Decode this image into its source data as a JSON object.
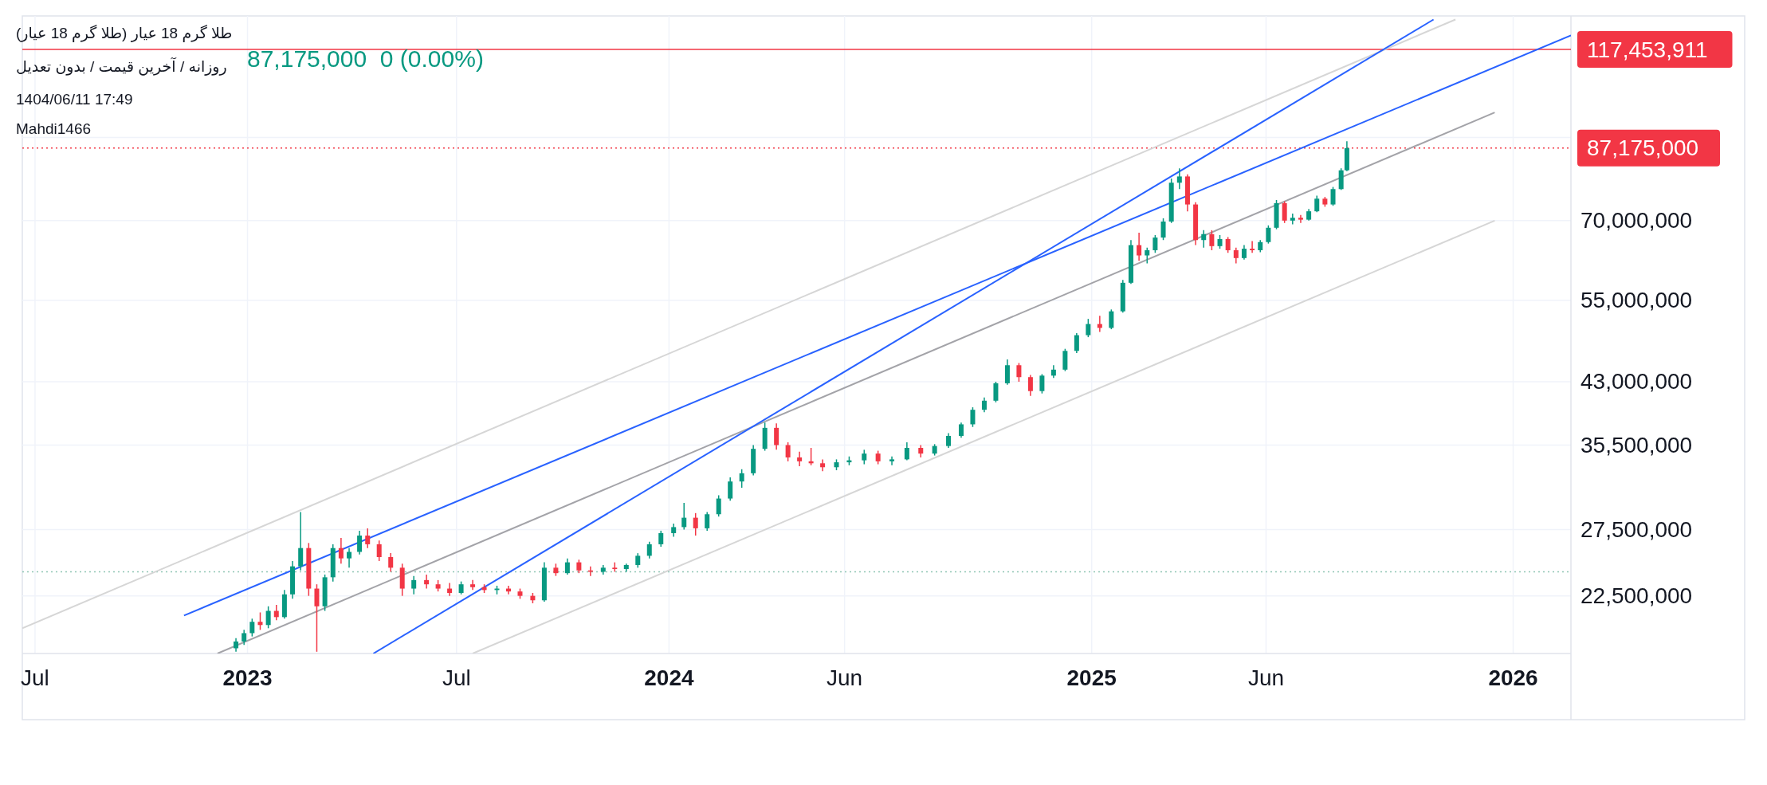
{
  "chart_data": {
    "type": "candlestick",
    "title": "طلا گرم 18 عیار (طلا گرم 18 عیار)",
    "subtitle": "روزانه / آخرین قیمت / بدون تعدیل",
    "annotations": [
      "1404/06/11 17:49",
      "Mahdi1466",
      "87,175,000  0 (0.00%)"
    ],
    "log": true,
    "grid": true,
    "xlim": [
      "2022-06-20",
      "2026-02-20"
    ],
    "xticks": [
      {
        "value": "2022-07-01",
        "label": "Jul"
      },
      {
        "value": "2023-01-01",
        "label": "2023"
      },
      {
        "value": "2023-07-01",
        "label": "Jul"
      },
      {
        "value": "2024-01-01",
        "label": "2024"
      },
      {
        "value": "2024-06-01",
        "label": "Jun"
      },
      {
        "value": "2025-01-01",
        "label": "2025"
      },
      {
        "value": "2025-06-01",
        "label": "Jun"
      },
      {
        "value": "2026-01-01",
        "label": "2026"
      }
    ],
    "ylim": [
      18900000,
      130000000
    ],
    "yticks": [
      {
        "value": 22500000,
        "label": "22,500,000"
      },
      {
        "value": 27500000,
        "label": "27,500,000"
      },
      {
        "value": 35500000,
        "label": "35,500,000"
      },
      {
        "value": 43000000,
        "label": "43,000,000"
      },
      {
        "value": 55000000,
        "label": "55,000,000"
      },
      {
        "value": 70000000,
        "label": "70,000,000"
      },
      {
        "value": 90000000,
        "label": null
      }
    ],
    "ref_lines": [
      {
        "axis": "y",
        "value": 117453911,
        "label": "117,453,911",
        "color": "#f23645",
        "line_style": "solid"
      },
      {
        "axis": "y",
        "value": 87175000,
        "label": "87,175,000",
        "color": "#f23645",
        "line_style": "dotted"
      },
      {
        "axis": "y",
        "value": 24200000,
        "color": "#8fc5b5",
        "line_style": "dotted"
      }
    ],
    "series": [
      {
        "type": "line",
        "x": [
          "2022-06-20",
          "2025-11-12"
        ],
        "values": [
          20400000,
          128600000
        ],
        "color": "#d6d6d6"
      },
      {
        "type": "line",
        "x": [
          "2023-07-15",
          "2025-12-16"
        ],
        "values": [
          18900000,
          70000000
        ],
        "color": "#d6d6d6"
      },
      {
        "type": "line",
        "x": [
          "2022-12-06",
          "2025-12-16"
        ],
        "values": [
          18900000,
          97100000
        ],
        "color": "#a3a3a8"
      },
      {
        "type": "line",
        "x": [
          "2022-11-07",
          "2026-02-20"
        ],
        "values": [
          21200000,
          122600000
        ],
        "color": "#2962ff"
      },
      {
        "type": "line",
        "x": [
          "2023-04-20",
          "2025-10-24"
        ],
        "values": [
          18900000,
          128600000
        ],
        "color": "#2962ff"
      }
    ],
    "x": [
      "2022-12-22",
      "2022-12-29",
      "2023-01-05",
      "2023-01-12",
      "2023-01-19",
      "2023-01-26",
      "2023-02-02",
      "2023-02-09",
      "2023-02-16",
      "2023-02-23",
      "2023-03-02",
      "2023-03-09",
      "2023-03-16",
      "2023-03-23",
      "2023-03-30",
      "2023-04-08",
      "2023-04-15",
      "2023-04-25",
      "2023-05-05",
      "2023-05-15",
      "2023-05-25",
      "2023-06-05",
      "2023-06-15",
      "2023-06-25",
      "2023-07-05",
      "2023-07-15",
      "2023-07-25",
      "2023-08-05",
      "2023-08-15",
      "2023-08-25",
      "2023-09-05",
      "2023-09-15",
      "2023-09-25",
      "2023-10-05",
      "2023-10-15",
      "2023-10-25",
      "2023-11-05",
      "2023-11-15",
      "2023-11-25",
      "2023-12-05",
      "2023-12-15",
      "2023-12-25",
      "2024-01-05",
      "2024-01-14",
      "2024-01-24",
      "2024-02-03",
      "2024-02-13",
      "2024-02-23",
      "2024-03-04",
      "2024-03-14",
      "2024-03-24",
      "2024-04-03",
      "2024-04-13",
      "2024-04-23",
      "2024-05-03",
      "2024-05-13",
      "2024-05-25",
      "2024-06-05",
      "2024-06-18",
      "2024-06-30",
      "2024-07-12",
      "2024-07-25",
      "2024-08-06",
      "2024-08-18",
      "2024-08-30",
      "2024-09-10",
      "2024-09-20",
      "2024-09-30",
      "2024-10-10",
      "2024-10-20",
      "2024-10-30",
      "2024-11-09",
      "2024-11-19",
      "2024-11-29",
      "2024-12-09",
      "2024-12-19",
      "2024-12-29",
      "2025-01-08",
      "2025-01-18",
      "2025-01-28",
      "2025-02-04",
      "2025-02-11",
      "2025-02-18",
      "2025-02-25",
      "2025-03-04",
      "2025-03-11",
      "2025-03-18",
      "2025-03-25",
      "2025-04-01",
      "2025-04-08",
      "2025-04-15",
      "2025-04-22",
      "2025-04-29",
      "2025-05-06",
      "2025-05-13",
      "2025-05-20",
      "2025-05-27",
      "2025-06-03",
      "2025-06-10",
      "2025-06-17",
      "2025-06-24",
      "2025-07-01",
      "2025-07-08",
      "2025-07-15",
      "2025-07-22",
      "2025-07-29",
      "2025-08-05",
      "2025-08-10"
    ],
    "ohlc": [
      [
        19200000,
        19800000,
        19000000,
        19600000
      ],
      [
        19600000,
        20300000,
        19400000,
        20100000
      ],
      [
        20100000,
        21000000,
        19900000,
        20800000
      ],
      [
        20800000,
        21400000,
        20300000,
        20600000
      ],
      [
        20600000,
        21800000,
        20400000,
        21500000
      ],
      [
        21500000,
        21900000,
        20900000,
        21100000
      ],
      [
        21100000,
        22900000,
        21000000,
        22600000
      ],
      [
        22600000,
        25000000,
        22300000,
        24600000
      ],
      [
        24600000,
        29000000,
        24300000,
        26000000
      ],
      [
        26000000,
        26400000,
        22500000,
        23000000
      ],
      [
        23000000,
        23300000,
        19000000,
        21800000
      ],
      [
        21800000,
        24000000,
        21500000,
        23800000
      ],
      [
        23800000,
        26300000,
        23500000,
        26000000
      ],
      [
        26000000,
        26800000,
        24800000,
        25200000
      ],
      [
        25200000,
        26000000,
        24500000,
        25700000
      ],
      [
        25700000,
        27400000,
        25500000,
        27000000
      ],
      [
        27000000,
        27600000,
        26000000,
        26300000
      ],
      [
        26300000,
        26600000,
        25000000,
        25300000
      ],
      [
        25300000,
        25600000,
        24200000,
        24500000
      ],
      [
        24500000,
        24800000,
        22500000,
        23000000
      ],
      [
        23000000,
        23900000,
        22600000,
        23600000
      ],
      [
        23600000,
        24000000,
        23000000,
        23300000
      ],
      [
        23300000,
        23600000,
        22800000,
        23000000
      ],
      [
        23000000,
        23400000,
        22500000,
        22700000
      ],
      [
        22700000,
        23500000,
        22600000,
        23300000
      ],
      [
        23300000,
        23600000,
        22900000,
        23100000
      ],
      [
        23100000,
        23300000,
        22700000,
        22900000
      ],
      [
        22900000,
        23200000,
        22600000,
        23000000
      ],
      [
        23000000,
        23200000,
        22600000,
        22800000
      ],
      [
        22800000,
        23000000,
        22300000,
        22500000
      ],
      [
        22500000,
        22700000,
        22000000,
        22200000
      ],
      [
        22200000,
        24900000,
        22100000,
        24500000
      ],
      [
        24500000,
        24800000,
        23900000,
        24100000
      ],
      [
        24100000,
        25200000,
        24000000,
        24900000
      ],
      [
        24900000,
        25100000,
        24100000,
        24300000
      ],
      [
        24300000,
        24600000,
        23900000,
        24200000
      ],
      [
        24200000,
        24700000,
        24000000,
        24500000
      ],
      [
        24500000,
        24900000,
        24200000,
        24400000
      ],
      [
        24400000,
        24800000,
        24200000,
        24700000
      ],
      [
        24700000,
        25600000,
        24500000,
        25400000
      ],
      [
        25400000,
        26500000,
        25200000,
        26300000
      ],
      [
        26300000,
        27400000,
        26100000,
        27200000
      ],
      [
        27200000,
        28000000,
        26900000,
        27700000
      ],
      [
        27700000,
        29800000,
        27500000,
        28500000
      ],
      [
        28500000,
        28900000,
        27000000,
        27600000
      ],
      [
        27600000,
        29000000,
        27400000,
        28800000
      ],
      [
        28800000,
        30500000,
        28600000,
        30200000
      ],
      [
        30200000,
        32200000,
        30000000,
        31800000
      ],
      [
        31800000,
        33000000,
        31200000,
        32600000
      ],
      [
        32600000,
        35500000,
        32400000,
        35100000
      ],
      [
        35100000,
        38000000,
        34900000,
        37400000
      ],
      [
        37400000,
        37900000,
        35000000,
        35500000
      ],
      [
        35500000,
        35800000,
        33800000,
        34200000
      ],
      [
        34200000,
        34800000,
        33300000,
        33800000
      ],
      [
        33800000,
        35200000,
        33400000,
        33600000
      ],
      [
        33600000,
        34000000,
        32800000,
        33200000
      ],
      [
        33200000,
        34000000,
        32900000,
        33700000
      ],
      [
        33700000,
        34300000,
        33400000,
        33900000
      ],
      [
        33900000,
        35000000,
        33500000,
        34600000
      ],
      [
        34600000,
        34900000,
        33500000,
        33800000
      ],
      [
        33800000,
        34300000,
        33400000,
        34000000
      ],
      [
        34000000,
        35800000,
        33900000,
        35200000
      ],
      [
        35200000,
        35500000,
        34200000,
        34600000
      ],
      [
        34600000,
        35600000,
        34400000,
        35400000
      ],
      [
        35400000,
        36800000,
        35200000,
        36500000
      ],
      [
        36500000,
        38000000,
        36300000,
        37800000
      ],
      [
        37800000,
        39800000,
        37500000,
        39500000
      ],
      [
        39500000,
        41000000,
        39200000,
        40600000
      ],
      [
        40600000,
        43000000,
        40400000,
        42800000
      ],
      [
        42800000,
        46000000,
        42600000,
        45200000
      ],
      [
        45200000,
        45500000,
        43000000,
        43600000
      ],
      [
        43600000,
        43900000,
        41200000,
        41800000
      ],
      [
        41800000,
        44000000,
        41500000,
        43800000
      ],
      [
        43800000,
        45200000,
        43500000,
        44600000
      ],
      [
        44600000,
        47500000,
        44400000,
        47200000
      ],
      [
        47200000,
        49800000,
        46900000,
        49500000
      ],
      [
        49500000,
        52000000,
        49200000,
        51200000
      ],
      [
        51200000,
        52500000,
        50000000,
        50600000
      ],
      [
        50600000,
        53500000,
        50400000,
        53200000
      ],
      [
        53200000,
        58500000,
        53000000,
        58000000
      ],
      [
        58000000,
        66000000,
        57800000,
        65000000
      ],
      [
        65000000,
        67500000,
        62000000,
        63000000
      ],
      [
        63000000,
        64500000,
        61500000,
        64000000
      ],
      [
        64000000,
        67000000,
        63500000,
        66500000
      ],
      [
        66500000,
        70500000,
        66000000,
        69800000
      ],
      [
        69800000,
        79500000,
        69500000,
        78500000
      ],
      [
        78500000,
        82000000,
        77000000,
        80000000
      ],
      [
        80000000,
        80500000,
        72000000,
        73500000
      ],
      [
        73500000,
        74000000,
        65000000,
        66000000
      ],
      [
        66000000,
        68000000,
        64500000,
        67200000
      ],
      [
        67200000,
        68000000,
        64000000,
        64800000
      ],
      [
        64800000,
        67000000,
        64300000,
        66200000
      ],
      [
        66200000,
        66600000,
        63500000,
        64000000
      ],
      [
        64000000,
        64500000,
        61500000,
        62500000
      ],
      [
        62500000,
        65000000,
        62200000,
        64300000
      ],
      [
        64300000,
        65800000,
        63500000,
        64000000
      ],
      [
        64000000,
        66000000,
        63600000,
        65600000
      ],
      [
        65600000,
        69000000,
        65300000,
        68500000
      ],
      [
        68500000,
        74500000,
        68200000,
        73800000
      ],
      [
        73800000,
        74200000,
        69500000,
        70000000
      ],
      [
        70000000,
        71500000,
        69200000,
        70600000
      ],
      [
        70600000,
        71200000,
        69500000,
        70200000
      ],
      [
        70200000,
        72500000,
        70000000,
        72000000
      ],
      [
        72000000,
        75500000,
        71800000,
        74800000
      ],
      [
        74800000,
        75200000,
        73000000,
        73500000
      ],
      [
        73500000,
        77500000,
        73200000,
        77000000
      ],
      [
        77000000,
        82000000,
        76800000,
        81500000
      ],
      [
        81500000,
        89000000,
        81300000,
        87175000
      ]
    ]
  }
}
